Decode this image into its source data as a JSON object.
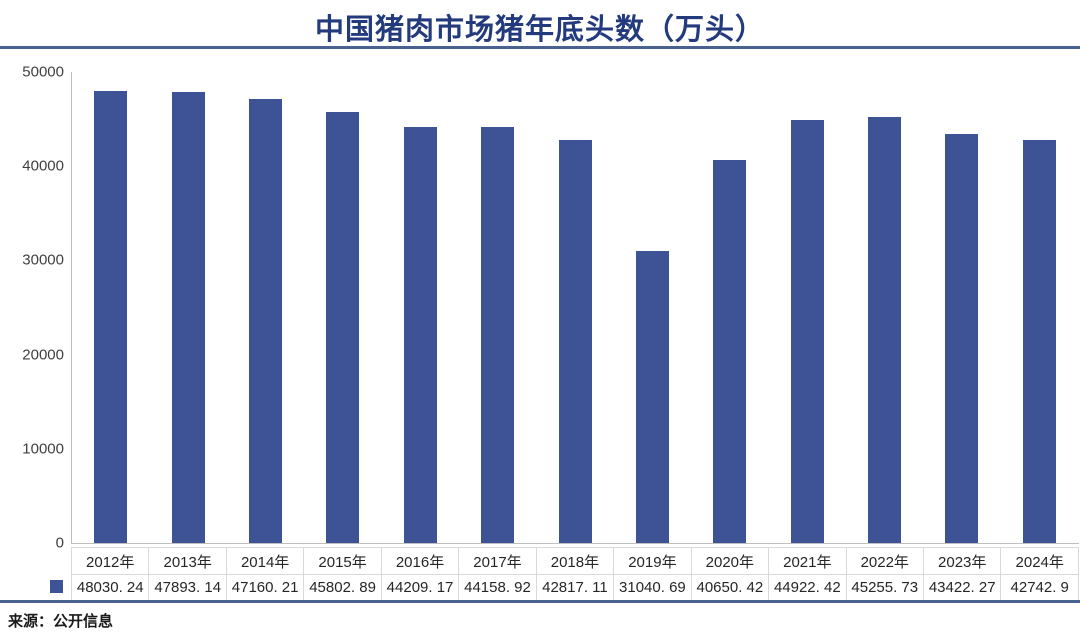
{
  "title": "中国猪肉市场猪年底头数（万头）",
  "source_note": "来源：公开信息",
  "colors": {
    "bar": "#3E5296",
    "title_text": "#233A7D",
    "rule": "#49618F",
    "table_border": "#D9D9D9",
    "axis_line": "#BFBFBF",
    "tick_text": "#404040",
    "table_text": "#262626"
  },
  "chart_data": {
    "type": "bar",
    "title": "中国猪肉市场猪年底头数（万头）",
    "categories": [
      "2012年",
      "2013年",
      "2014年",
      "2015年",
      "2016年",
      "2017年",
      "2018年",
      "2019年",
      "2020年",
      "2021年",
      "2022年",
      "2023年",
      "2024年"
    ],
    "values": [
      48030.24,
      47893.14,
      47160.21,
      45802.89,
      44209.17,
      44158.92,
      42817.11,
      31040.69,
      40650.42,
      44922.42,
      45255.73,
      43422.27,
      42742.9
    ],
    "value_labels": [
      "48030. 24",
      "47893. 14",
      "47160. 21",
      "45802. 89",
      "44209. 17",
      "44158. 92",
      "42817. 11",
      "31040. 69",
      "40650. 42",
      "44922. 42",
      "45255. 73",
      "43422. 27",
      "42742. 9"
    ],
    "ylabel": "",
    "xlabel": "",
    "ylim": [
      0,
      50000
    ],
    "y_ticks": [
      0,
      10000,
      20000,
      30000,
      40000,
      50000
    ],
    "grid": false,
    "legend_marker": "square",
    "legend_position": "table-left",
    "has_data_table": true
  }
}
